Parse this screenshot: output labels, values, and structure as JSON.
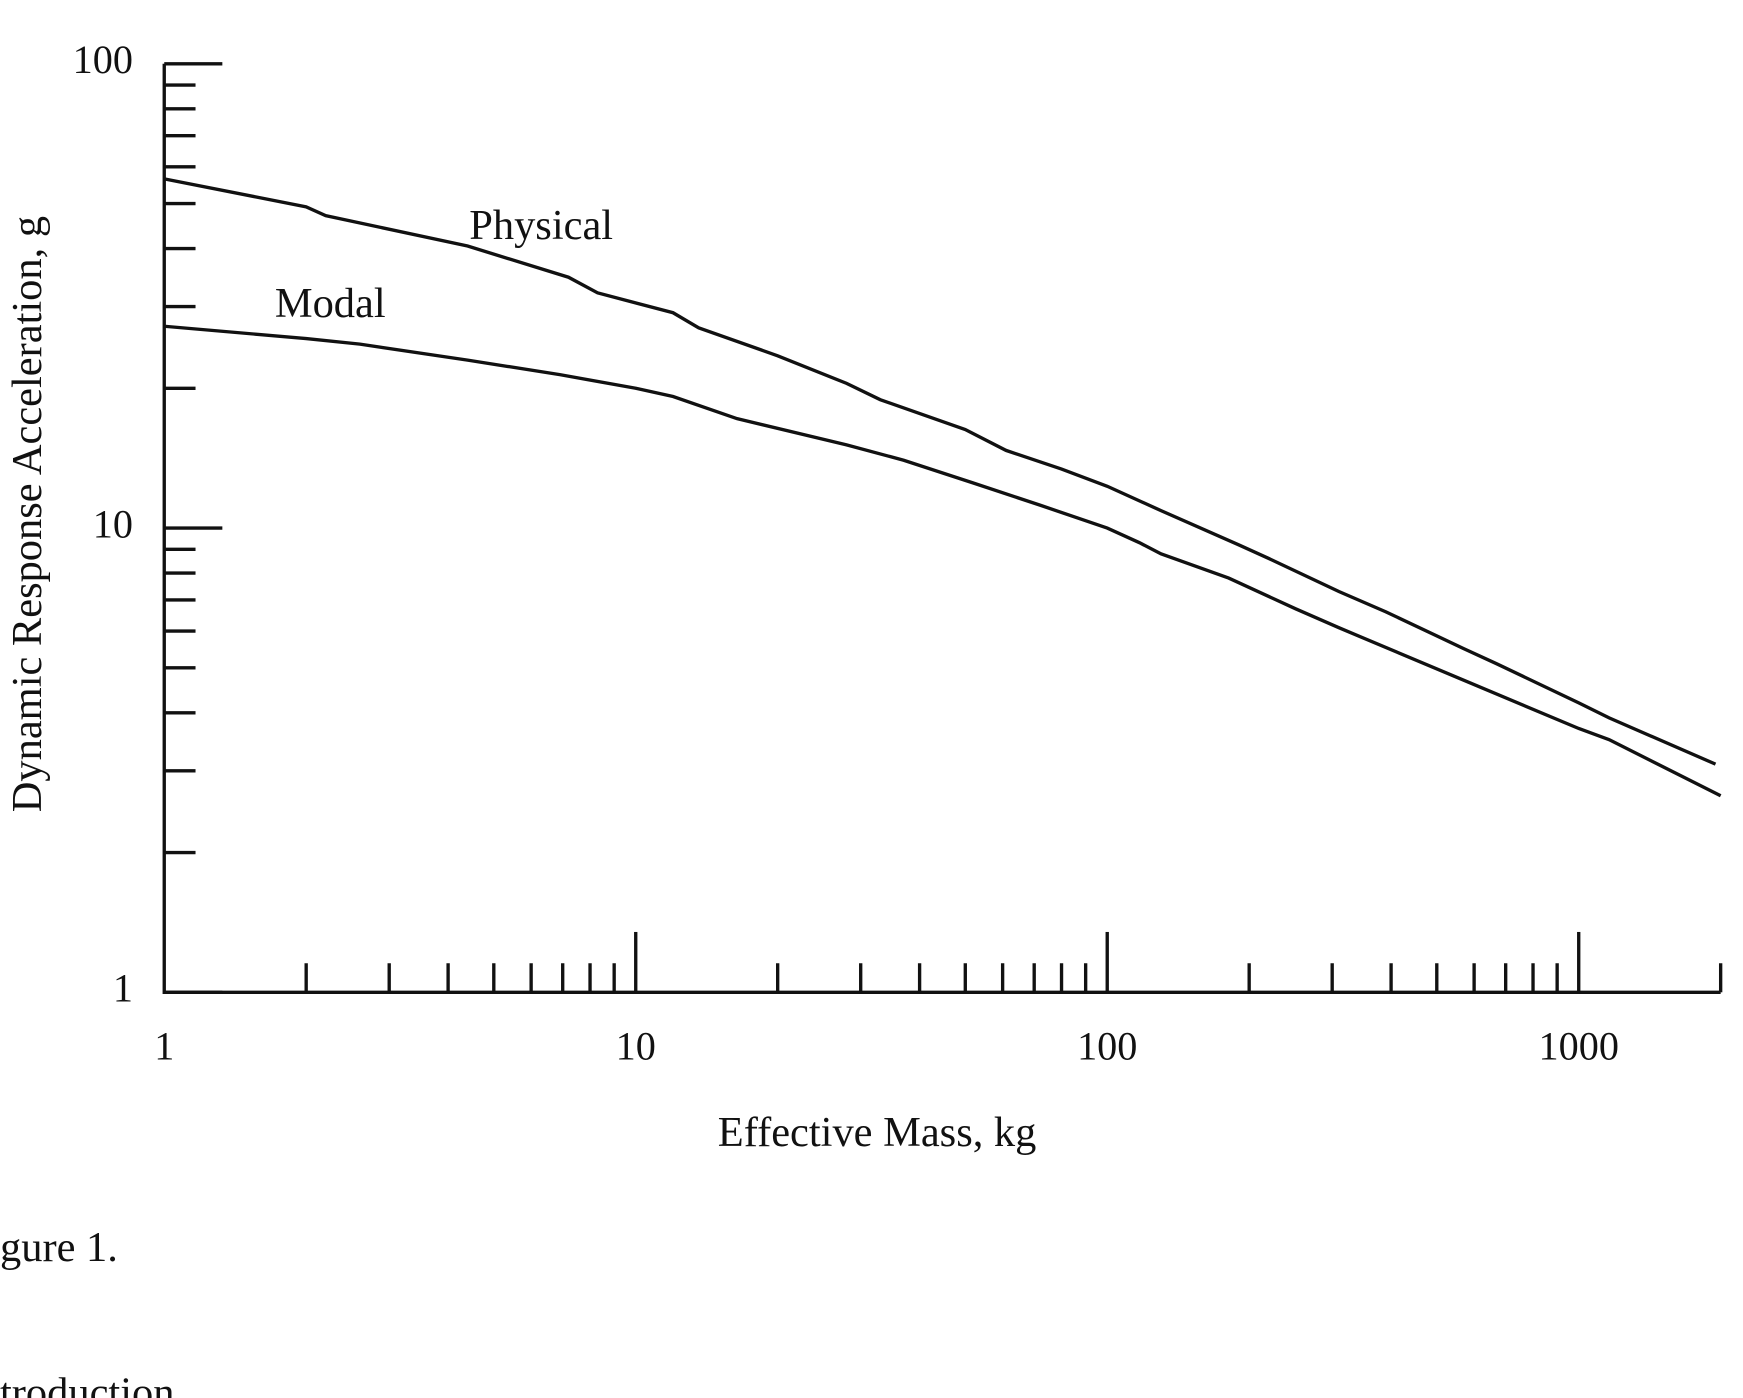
{
  "chart_data": {
    "type": "line",
    "xlabel": "Effective Mass, kg",
    "ylabel": "Dynamic Response Acceleration, g",
    "xscale": "log",
    "yscale": "log",
    "xlim": [
      1,
      2000
    ],
    "ylim": [
      1,
      100
    ],
    "xticks": [
      1,
      10,
      100,
      1000
    ],
    "xminor_ticks": [
      2,
      3,
      4,
      5,
      6,
      7,
      8,
      9,
      20,
      30,
      40,
      50,
      60,
      70,
      80,
      90,
      200,
      300,
      400,
      500,
      600,
      700,
      800,
      900,
      2000
    ],
    "yticks": [
      1,
      10,
      100
    ],
    "yminor_ticks": [
      2,
      3,
      4,
      5,
      6,
      7,
      8,
      9,
      20,
      30,
      40,
      50,
      60,
      70,
      80,
      90
    ],
    "series": [
      {
        "name": "Physical",
        "color": "#111111",
        "x": [
          1,
          2,
          2.2,
          4.4,
          7.2,
          8.3,
          12,
          13.6,
          20,
          28,
          33,
          50,
          61,
          80,
          100,
          130,
          190,
          220,
          310,
          390,
          570,
          670,
          1000,
          1160,
          1950
        ],
        "values": [
          56.5,
          49.2,
          47.1,
          40.5,
          34.7,
          32.1,
          29.1,
          27.0,
          23.5,
          20.5,
          18.9,
          16.3,
          14.7,
          13.4,
          12.3,
          10.9,
          9.2,
          8.6,
          7.3,
          6.6,
          5.5,
          5.1,
          4.2,
          3.9,
          3.1
        ]
      },
      {
        "name": "Modal",
        "color": "#111111",
        "x": [
          1,
          2,
          2.6,
          4.4,
          6.9,
          10,
          12,
          16.4,
          28,
          37,
          52,
          72,
          100,
          117,
          130,
          181,
          251,
          310,
          570,
          1000,
          1160,
          2000
        ],
        "values": [
          27.2,
          25.6,
          24.9,
          23.0,
          21.4,
          20.0,
          19.2,
          17.2,
          15.1,
          14.0,
          12.5,
          11.2,
          10.0,
          9.3,
          8.8,
          7.8,
          6.7,
          6.1,
          4.7,
          3.7,
          3.5,
          2.65
        ]
      }
    ]
  },
  "document": {
    "caption": "gure 1.",
    "next_heading": "troduction"
  }
}
